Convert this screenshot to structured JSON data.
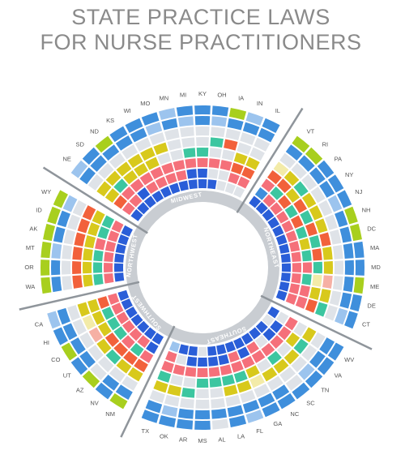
{
  "title": [
    "STATE PRACTICE LAWS",
    "FOR NURSE PRACTITIONERS"
  ],
  "palette": {
    "b": "#3f8fdc",
    "l": "#9cc4ee",
    "g": "#a8cf1e",
    "y": "#d8c91c",
    "t": "#3cc6a0",
    "o": "#f2613b",
    "s": "#f5707a",
    "d": "#2a5ed8",
    "x": "#dfe3e8",
    "w": "#f3eba8",
    "p": "#f6b0a4"
  },
  "regions": [
    {
      "label": "MIDWEST",
      "states": [
        {
          "code": "NE",
          "rings": "lbxyyosd"
        },
        {
          "code": "SD",
          "rings": "bbxytssd"
        },
        {
          "code": "ND",
          "rings": "gbxyysdd"
        },
        {
          "code": "KS",
          "rings": "bbxyyssd"
        },
        {
          "code": "WI",
          "rings": "bbxyyssd"
        },
        {
          "code": "MO",
          "rings": "blxyxssd"
        },
        {
          "code": "MN",
          "rings": "lbxxxssd"
        },
        {
          "code": "MI",
          "rings": "blxxtsdd"
        },
        {
          "code": "KY",
          "rings": "bbxxtsdd"
        },
        {
          "code": "OH",
          "rings": "blxtxsxd"
        },
        {
          "code": "IA",
          "rings": "gbxoxsxx"
        },
        {
          "code": "IN",
          "rings": "lbxxyosx"
        },
        {
          "code": "IL",
          "rings": "bbxxyosx"
        }
      ]
    },
    {
      "label": "NORTHEAST",
      "states": [
        {
          "code": "VT",
          "rings": "gbxwosbd"
        },
        {
          "code": "RI",
          "rings": "gbxyotsd"
        },
        {
          "code": "PA",
          "rings": "bbxtyosd"
        },
        {
          "code": "NY",
          "rings": "bbxyotsd"
        },
        {
          "code": "NJ",
          "rings": "blxytosd"
        },
        {
          "code": "NH",
          "rings": "gbxyotsd"
        },
        {
          "code": "DC",
          "rings": "gbxotysd"
        },
        {
          "code": "MA",
          "rings": "bbxyotsd"
        },
        {
          "code": "MD",
          "rings": "bbxytssd"
        },
        {
          "code": "ME",
          "rings": "gbxpwtsd"
        },
        {
          "code": "DE",
          "rings": "bbxyyssd"
        },
        {
          "code": "CT",
          "rings": "blxtossd"
        }
      ]
    },
    {
      "label": "SOUTHEAST",
      "states": [
        {
          "code": "WV",
          "rings": "bbxyxsxd"
        },
        {
          "code": "VA",
          "rings": "bbxtysdx"
        },
        {
          "code": "TN",
          "rings": "blxyxsdd"
        },
        {
          "code": "SC",
          "rings": "bxxytsxd"
        },
        {
          "code": "NC",
          "rings": "bbxyxssd"
        },
        {
          "code": "GA",
          "rings": "bbxwysdd"
        },
        {
          "code": "FL",
          "rings": "lbxytssd"
        },
        {
          "code": "LA",
          "rings": "bbxytsdd"
        },
        {
          "code": "AL",
          "rings": "xbxxtsdd"
        },
        {
          "code": "MS",
          "rings": "bbxxtsdx"
        },
        {
          "code": "AR",
          "rings": "bbxtxsdd"
        },
        {
          "code": "OK",
          "rings": "blxyxsxd"
        },
        {
          "code": "TX",
          "rings": "bbxytssl"
        }
      ]
    },
    {
      "label": "SOUTHWEST",
      "states": [
        {
          "code": "NM",
          "rings": "gbxyosdd"
        },
        {
          "code": "NV",
          "rings": "bbxyotsd"
        },
        {
          "code": "AZ",
          "rings": "gxxtossd"
        },
        {
          "code": "UT",
          "rings": "bbxyotsd"
        },
        {
          "code": "CO",
          "rings": "gbxpytsd"
        },
        {
          "code": "HI",
          "rings": "bbxwytsd"
        },
        {
          "code": "CA",
          "rings": "lbxyyosd"
        }
      ]
    },
    {
      "label": "NORTHWEST",
      "states": [
        {
          "code": "WA",
          "rings": "gbxoytsd"
        },
        {
          "code": "OR",
          "rings": "gbxoytsd"
        },
        {
          "code": "MT",
          "rings": "glxoytsd"
        },
        {
          "code": "AK",
          "rings": "gbxoyssd"
        },
        {
          "code": "ID",
          "rings": "gbxoytsd"
        },
        {
          "code": "WY",
          "rings": "glxoytsd"
        }
      ]
    }
  ]
}
